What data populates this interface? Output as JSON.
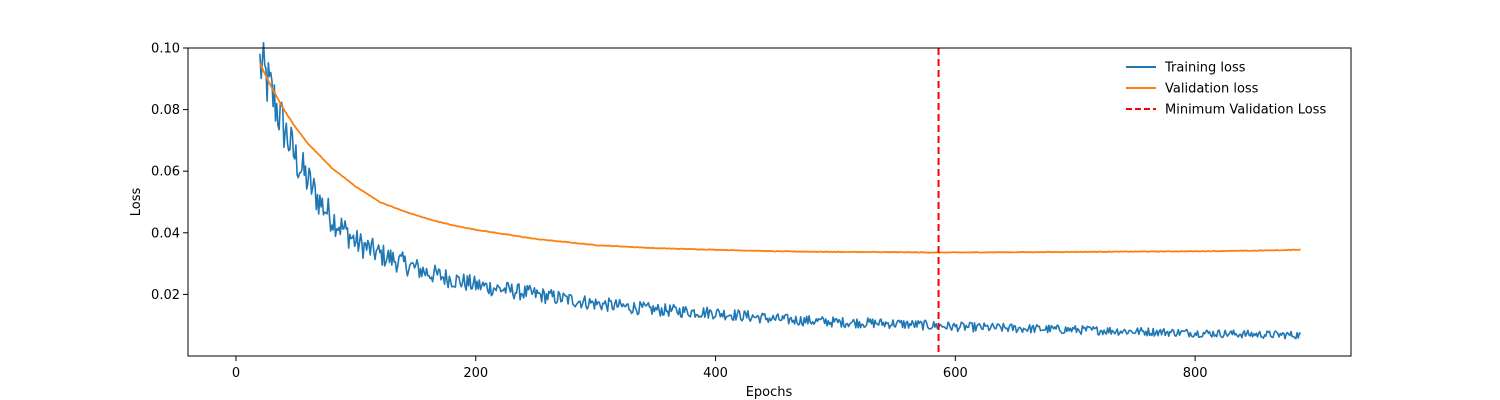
{
  "chart_data": {
    "type": "line",
    "title": "",
    "xlabel": "Epochs",
    "ylabel": "Loss",
    "xlim": [
      -40,
      930
    ],
    "ylim": [
      0.0,
      0.1
    ],
    "x_ticks": [
      0,
      200,
      400,
      600,
      800
    ],
    "x_tick_labels": [
      "0",
      "200",
      "400",
      "600",
      "800"
    ],
    "y_ticks": [
      0.02,
      0.04,
      0.06,
      0.08,
      0.1
    ],
    "y_tick_labels": [
      "0.02",
      "0.04",
      "0.06",
      "0.08",
      "0.10"
    ],
    "grid": false,
    "legend_position": "top-right",
    "series": [
      {
        "name": "Training loss",
        "color": "#1f77b4",
        "style": "noisy",
        "x": [
          20,
          30,
          40,
          50,
          60,
          70,
          80,
          90,
          100,
          120,
          140,
          160,
          180,
          200,
          250,
          300,
          350,
          400,
          450,
          500,
          550,
          600,
          650,
          700,
          750,
          800,
          850,
          888
        ],
        "y": [
          0.095,
          0.085,
          0.074,
          0.064,
          0.057,
          0.05,
          0.045,
          0.041,
          0.037,
          0.033,
          0.03,
          0.027,
          0.025,
          0.023,
          0.02,
          0.017,
          0.015,
          0.014,
          0.012,
          0.011,
          0.0105,
          0.0095,
          0.009,
          0.0085,
          0.008,
          0.0075,
          0.007,
          0.0068
        ]
      },
      {
        "name": "Validation loss",
        "color": "#ff7f0e",
        "style": "smooth",
        "x": [
          20,
          30,
          40,
          50,
          60,
          70,
          80,
          90,
          100,
          120,
          140,
          160,
          180,
          200,
          250,
          300,
          350,
          400,
          450,
          500,
          550,
          586,
          650,
          700,
          750,
          800,
          850,
          888
        ],
        "y": [
          0.095,
          0.087,
          0.08,
          0.074,
          0.069,
          0.065,
          0.061,
          0.058,
          0.055,
          0.05,
          0.047,
          0.0445,
          0.0425,
          0.041,
          0.038,
          0.036,
          0.035,
          0.0345,
          0.034,
          0.0338,
          0.0337,
          0.0336,
          0.0337,
          0.0338,
          0.0339,
          0.034,
          0.0342,
          0.0345
        ]
      }
    ],
    "annotations": [
      {
        "name": "Minimum Validation Loss",
        "type": "vline",
        "x": 586,
        "color": "#ff0000",
        "dash": "dashed"
      }
    ]
  }
}
